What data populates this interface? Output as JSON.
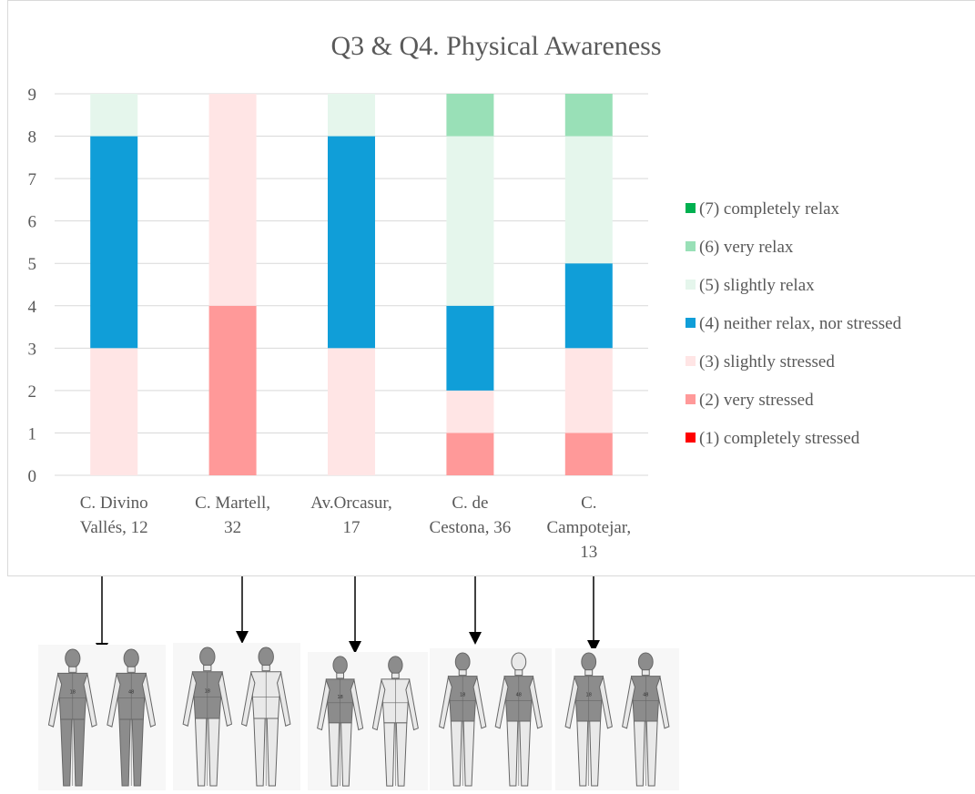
{
  "chart_data": {
    "type": "bar",
    "stacked": true,
    "title": "Q3 & Q4. Physical Awareness",
    "xlabel": "",
    "ylabel": "",
    "ylim": [
      0,
      9
    ],
    "yticks": [
      "0",
      "1",
      "2",
      "3",
      "4",
      "5",
      "6",
      "7",
      "8",
      "9"
    ],
    "grid": true,
    "legend_position": "right",
    "categories": [
      [
        "C. Divino",
        "Vallés, 12"
      ],
      [
        "C. Martell,",
        "32"
      ],
      [
        "Av.Orcasur,",
        "17"
      ],
      [
        "C. de",
        "Cestona, 36"
      ],
      [
        "C.",
        "Campotejar,",
        "13"
      ]
    ],
    "series": [
      {
        "name": "(1) completely stressed",
        "color": "#ff0000",
        "values": [
          0,
          0,
          0,
          0,
          0
        ]
      },
      {
        "name": "(2) very stressed",
        "color": "#ff9999",
        "values": [
          0,
          4,
          0,
          1,
          1
        ]
      },
      {
        "name": "(3) slightly stressed",
        "color": "#ffe5e5",
        "values": [
          3,
          5,
          3,
          1,
          2
        ]
      },
      {
        "name": "(4) neither relax, nor stressed",
        "color": "#109ed8",
        "values": [
          5,
          0,
          5,
          2,
          2
        ]
      },
      {
        "name": "(5) slightly relax",
        "color": "#e5f6ec",
        "values": [
          1,
          0,
          1,
          4,
          3
        ]
      },
      {
        "name": "(6) very relax",
        "color": "#99e0b7",
        "values": [
          0,
          0,
          0,
          1,
          1
        ]
      },
      {
        "name": "(7) completely relax",
        "color": "#00b050",
        "values": [
          0,
          0,
          0,
          0,
          0
        ]
      }
    ]
  },
  "body_maps": [
    {
      "shaded_front": [
        "1",
        "16",
        "17",
        "18",
        "19",
        "20",
        "21",
        "22",
        "23",
        "24",
        "25",
        "26"
      ],
      "shaded_back": [
        "31",
        "49",
        "50",
        "51",
        "52"
      ]
    },
    {
      "shaded_front": [
        "1",
        "16",
        "17",
        "18"
      ],
      "shaded_back": [
        "31"
      ]
    },
    {
      "shaded_front": [
        "1",
        "16",
        "17",
        "18"
      ],
      "shaded_back": [
        "31"
      ]
    },
    {
      "shaded_front": [
        "1",
        "18"
      ],
      "shaded_back": [
        "49",
        "50"
      ]
    },
    {
      "shaded_front": [
        "1",
        "16",
        "17",
        "18"
      ],
      "shaded_back": [
        "31",
        "46",
        "47",
        "48"
      ]
    }
  ]
}
